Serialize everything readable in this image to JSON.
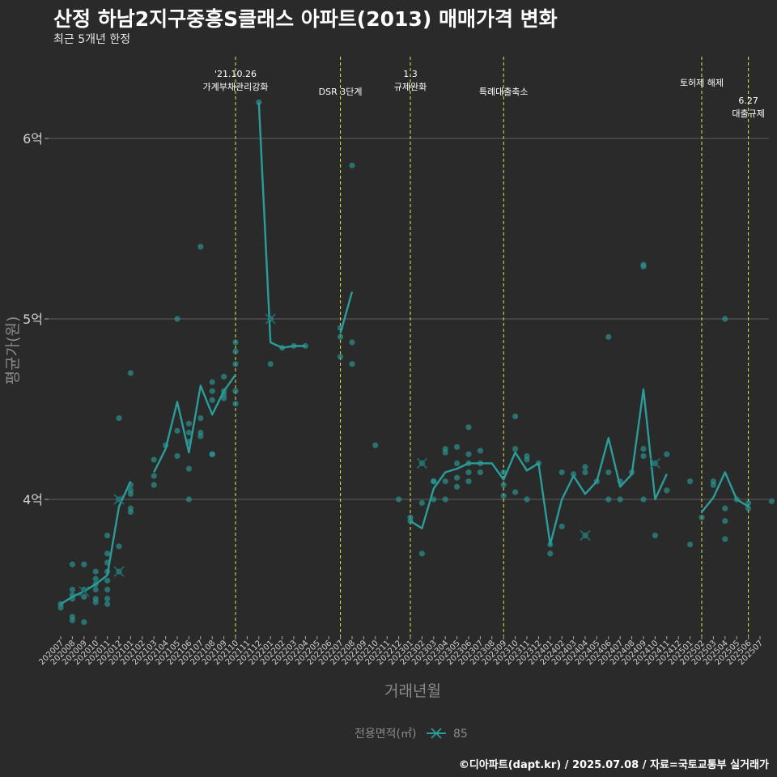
{
  "title": "산정 하남2지구중흥S클래스 아파트(2013) 매매가격 변화",
  "subtitle": "최근 5개년 한정",
  "caption": "©디아파트(dapt.kr) / 2025.07.08 / 자료=국토교통부 실거래가",
  "colors": {
    "background": "#2b2a2a",
    "series": "#2a9d9a",
    "event_line": "#e6e64c",
    "grid": "#555555"
  },
  "chart_data": {
    "type": "line",
    "xlabel": "거래년월",
    "ylabel": "평균가(원)",
    "ylim": [
      3.25,
      6.5
    ],
    "yticks": [
      {
        "value": 4,
        "label": "4억"
      },
      {
        "value": 5,
        "label": "5억"
      },
      {
        "value": 6,
        "label": "6억"
      }
    ],
    "grid": true,
    "categories": [
      "202007",
      "202008",
      "202009",
      "202010",
      "202011",
      "202012",
      "202101",
      "202102",
      "202103",
      "202104",
      "202105",
      "202106",
      "202107",
      "202108",
      "202109",
      "202110",
      "202111",
      "202112",
      "202201",
      "202202",
      "202203",
      "202204",
      "202205",
      "202206",
      "202207",
      "202208",
      "202209",
      "202210",
      "202211",
      "202212",
      "202301",
      "202302",
      "202303",
      "202304",
      "202305",
      "202306",
      "202307",
      "202308",
      "202309",
      "202310",
      "202311",
      "202312",
      "202401",
      "202402",
      "202403",
      "202404",
      "202405",
      "202406",
      "202407",
      "202408",
      "202409",
      "202410",
      "202411",
      "202412",
      "202501",
      "202502",
      "202503",
      "202504",
      "202505",
      "202506",
      "202507"
    ],
    "legend": {
      "title": "전용면적(㎡)",
      "position": "bottom",
      "entries": [
        "85"
      ]
    },
    "series": [
      {
        "name": "85",
        "line_segments": [
          [
            [
              0,
              3.42
            ],
            [
              1,
              3.46
            ],
            [
              2,
              3.49
            ],
            [
              3,
              3.53
            ],
            [
              4,
              3.58
            ],
            [
              5,
              3.96
            ],
            [
              6,
              4.1
            ]
          ],
          [
            [
              8,
              4.15
            ],
            [
              9,
              4.28
            ],
            [
              10,
              4.54
            ],
            [
              11,
              4.26
            ],
            [
              12,
              4.63
            ],
            [
              13,
              4.47
            ],
            [
              14,
              4.6
            ],
            [
              15,
              4.69
            ]
          ],
          [
            [
              17,
              6.2
            ],
            [
              18,
              4.87
            ],
            [
              19,
              4.84
            ],
            [
              20,
              4.85
            ],
            [
              21,
              4.85
            ]
          ],
          [
            [
              24,
              4.92
            ],
            [
              25,
              5.15
            ]
          ],
          [
            [
              30,
              3.88
            ],
            [
              31,
              3.84
            ],
            [
              32,
              4.06
            ],
            [
              33,
              4.15
            ],
            [
              34,
              4.17
            ],
            [
              35,
              4.2
            ],
            [
              36,
              4.2
            ],
            [
              37,
              4.2
            ],
            [
              38,
              4.11
            ],
            [
              39,
              4.26
            ],
            [
              40,
              4.16
            ],
            [
              41,
              4.2
            ],
            [
              42,
              3.75
            ],
            [
              43,
              4.0
            ],
            [
              44,
              4.13
            ],
            [
              45,
              4.03
            ],
            [
              46,
              4.1
            ],
            [
              47,
              4.34
            ],
            [
              48,
              4.07
            ],
            [
              49,
              4.14
            ],
            [
              50,
              4.61
            ],
            [
              51,
              4.0
            ],
            [
              52,
              4.14
            ]
          ],
          [
            [
              55,
              3.93
            ],
            [
              56,
              4.01
            ],
            [
              57,
              4.15
            ],
            [
              58,
              4.0
            ],
            [
              59,
              3.96
            ]
          ]
        ],
        "points": [
          [
            0,
            3.42
          ],
          [
            0,
            3.4
          ],
          [
            1,
            3.45
          ],
          [
            1,
            3.5
          ],
          [
            1,
            3.64
          ],
          [
            1,
            3.35
          ],
          [
            1,
            3.33
          ],
          [
            1,
            3.47
          ],
          [
            2,
            3.46
          ],
          [
            2,
            3.5
          ],
          [
            2,
            3.64
          ],
          [
            2,
            3.32
          ],
          [
            3,
            3.45
          ],
          [
            3,
            3.5
          ],
          [
            3,
            3.56
          ],
          [
            3,
            3.6
          ],
          [
            3,
            3.43
          ],
          [
            3,
            3.53
          ],
          [
            4,
            3.45
          ],
          [
            4,
            3.5
          ],
          [
            4,
            3.55
          ],
          [
            4,
            3.6
          ],
          [
            4,
            3.65
          ],
          [
            4,
            3.7
          ],
          [
            4,
            3.8
          ],
          [
            4,
            3.42
          ],
          [
            5,
            3.6
          ],
          [
            5,
            3.74
          ],
          [
            5,
            4.0
          ],
          [
            5,
            4.45
          ],
          [
            6,
            3.93
          ],
          [
            6,
            3.95
          ],
          [
            6,
            4.03
          ],
          [
            6,
            4.05
          ],
          [
            6,
            4.08
          ],
          [
            6,
            4.7
          ],
          [
            8,
            4.08
          ],
          [
            8,
            4.13
          ],
          [
            8,
            4.22
          ],
          [
            9,
            4.3
          ],
          [
            10,
            4.24
          ],
          [
            10,
            4.38
          ],
          [
            10,
            5.0
          ],
          [
            11,
            4.0
          ],
          [
            11,
            4.17
          ],
          [
            11,
            4.32
          ],
          [
            11,
            4.37
          ],
          [
            11,
            4.42
          ],
          [
            12,
            4.35
          ],
          [
            12,
            4.37
          ],
          [
            12,
            4.45
          ],
          [
            12,
            5.4
          ],
          [
            13,
            4.25
          ],
          [
            13,
            4.25
          ],
          [
            13,
            4.55
          ],
          [
            13,
            4.6
          ],
          [
            13,
            4.65
          ],
          [
            14,
            4.56
          ],
          [
            14,
            4.58
          ],
          [
            14,
            4.6
          ],
          [
            14,
            4.68
          ],
          [
            15,
            4.53
          ],
          [
            15,
            4.6
          ],
          [
            15,
            4.75
          ],
          [
            15,
            4.82
          ],
          [
            15,
            4.87
          ],
          [
            17,
            6.2
          ],
          [
            18,
            4.75
          ],
          [
            18,
            5.0
          ],
          [
            19,
            4.84
          ],
          [
            20,
            4.85
          ],
          [
            21,
            4.85
          ],
          [
            24,
            4.79
          ],
          [
            24,
            4.9
          ],
          [
            24,
            4.95
          ],
          [
            25,
            4.75
          ],
          [
            25,
            4.87
          ],
          [
            25,
            5.85
          ],
          [
            27,
            4.3
          ],
          [
            29,
            4.0
          ],
          [
            30,
            3.88
          ],
          [
            30,
            3.9
          ],
          [
            31,
            3.7
          ],
          [
            31,
            3.98
          ],
          [
            31,
            4.2
          ],
          [
            32,
            4.0
          ],
          [
            32,
            4.1
          ],
          [
            32,
            4.1
          ],
          [
            33,
            4.0
          ],
          [
            33,
            4.1
          ],
          [
            33,
            4.26
          ],
          [
            33,
            4.28
          ],
          [
            34,
            4.07
          ],
          [
            34,
            4.12
          ],
          [
            34,
            4.2
          ],
          [
            34,
            4.29
          ],
          [
            35,
            4.1
          ],
          [
            35,
            4.15
          ],
          [
            35,
            4.2
          ],
          [
            35,
            4.25
          ],
          [
            35,
            4.4
          ],
          [
            36,
            4.15
          ],
          [
            36,
            4.2
          ],
          [
            36,
            4.27
          ],
          [
            38,
            4.02
          ],
          [
            38,
            4.08
          ],
          [
            38,
            4.15
          ],
          [
            39,
            4.04
          ],
          [
            39,
            4.28
          ],
          [
            39,
            4.46
          ],
          [
            40,
            4.0
          ],
          [
            40,
            4.22
          ],
          [
            40,
            4.24
          ],
          [
            41,
            4.2
          ],
          [
            42,
            3.7
          ],
          [
            42,
            3.75
          ],
          [
            43,
            3.85
          ],
          [
            43,
            4.15
          ],
          [
            44,
            4.14
          ],
          [
            45,
            3.8
          ],
          [
            45,
            4.15
          ],
          [
            45,
            4.18
          ],
          [
            46,
            4.1
          ],
          [
            47,
            4.0
          ],
          [
            47,
            4.15
          ],
          [
            47,
            4.9
          ],
          [
            48,
            4.0
          ],
          [
            48,
            4.1
          ],
          [
            49,
            4.15
          ],
          [
            50,
            4.0
          ],
          [
            50,
            4.24
          ],
          [
            50,
            4.28
          ],
          [
            50,
            5.29
          ],
          [
            50,
            5.3
          ],
          [
            51,
            3.8
          ],
          [
            51,
            4.2
          ],
          [
            52,
            4.05
          ],
          [
            52,
            4.25
          ],
          [
            54,
            3.75
          ],
          [
            54,
            4.1
          ],
          [
            55,
            3.9
          ],
          [
            56,
            4.08
          ],
          [
            56,
            4.1
          ],
          [
            57,
            3.78
          ],
          [
            57,
            3.88
          ],
          [
            57,
            3.95
          ],
          [
            57,
            5.0
          ],
          [
            58,
            4.0
          ],
          [
            59,
            3.95
          ],
          [
            59,
            3.98
          ],
          [
            61,
            3.99
          ]
        ],
        "cross_markers": [
          [
            2,
            3.49
          ],
          [
            5,
            3.6
          ],
          [
            5,
            4.0
          ],
          [
            18,
            5.0
          ],
          [
            31,
            4.2
          ],
          [
            45,
            3.8
          ],
          [
            51,
            4.2
          ]
        ]
      }
    ],
    "events": [
      {
        "x": 15,
        "lines": [
          "'21.10.26",
          "가계부채관리강화"
        ],
        "level": 0
      },
      {
        "x": 24,
        "lines": [
          "DSR 3단계"
        ],
        "level": 1
      },
      {
        "x": 30,
        "lines": [
          "1.3",
          "규제완화"
        ],
        "level": 0
      },
      {
        "x": 38,
        "lines": [
          "특례대출축소"
        ],
        "level": 1
      },
      {
        "x": 55,
        "lines": [
          "토허제 해제"
        ],
        "level": 0.5
      },
      {
        "x": 59,
        "lines": [
          "6.27",
          "대출규제"
        ],
        "level": 1.5
      }
    ]
  }
}
